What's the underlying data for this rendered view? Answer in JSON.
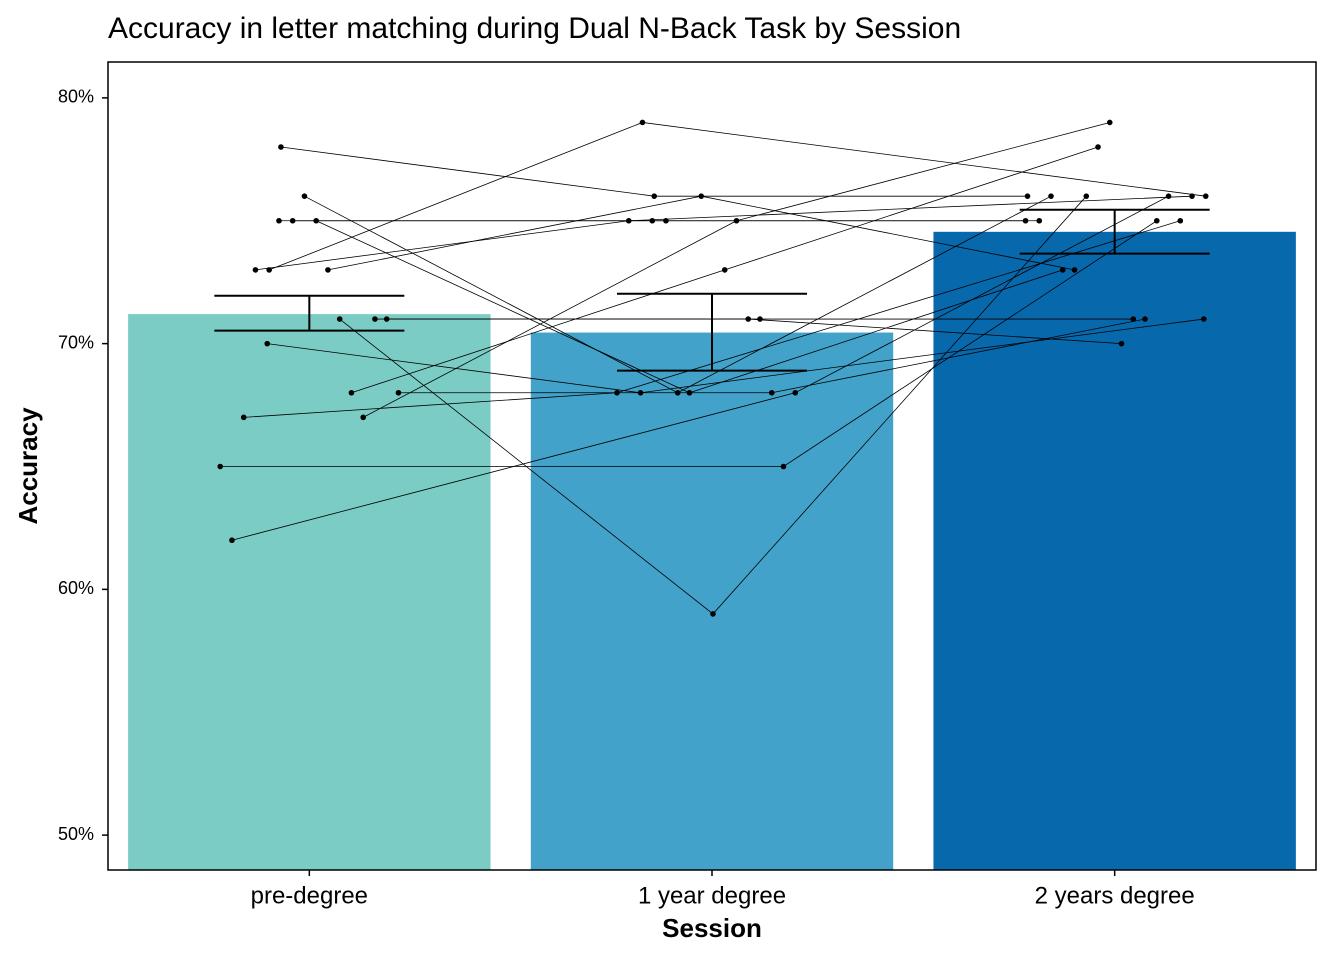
{
  "chart_data": {
    "type": "bar",
    "title": "Accuracy in letter matching during Dual N-Back Task by Session",
    "x_label": "Session",
    "y_label": "Accuracy",
    "categories": [
      "pre-degree",
      "1 year degree",
      "2 years degree"
    ],
    "values": [
      71.2,
      70.45,
      74.55
    ],
    "colors": [
      "#7bccc4",
      "#43a2ca",
      "#0868ac"
    ],
    "ci": [
      [
        70.53,
        71.95
      ],
      [
        68.9,
        72.03
      ],
      [
        73.66,
        75.45
      ]
    ],
    "subjects": [
      [
        73,
        79,
        76
      ],
      [
        78,
        76,
        76
      ],
      [
        75,
        75,
        75
      ],
      [
        76,
        68,
        76
      ],
      [
        75,
        68,
        73
      ],
      [
        73,
        76,
        73
      ],
      [
        71,
        59,
        76
      ],
      [
        68,
        73,
        78
      ],
      [
        67,
        75,
        79
      ],
      [
        71,
        71,
        70
      ],
      [
        71,
        71,
        71
      ],
      [
        68,
        68,
        71
      ],
      [
        65,
        65,
        75
      ],
      [
        62,
        68,
        76
      ],
      [
        67,
        68,
        75
      ],
      [
        73,
        75,
        76
      ],
      [
        70,
        68,
        71
      ],
      [
        75,
        75,
        75
      ]
    ],
    "ylim": [
      48.58,
      81.46
    ],
    "yticks": [
      {
        "value": 50,
        "label": "50%"
      },
      {
        "value": 60,
        "label": "60%"
      },
      {
        "value": 70,
        "label": "70%"
      },
      {
        "value": 80,
        "label": "80%"
      }
    ],
    "grid": false
  }
}
